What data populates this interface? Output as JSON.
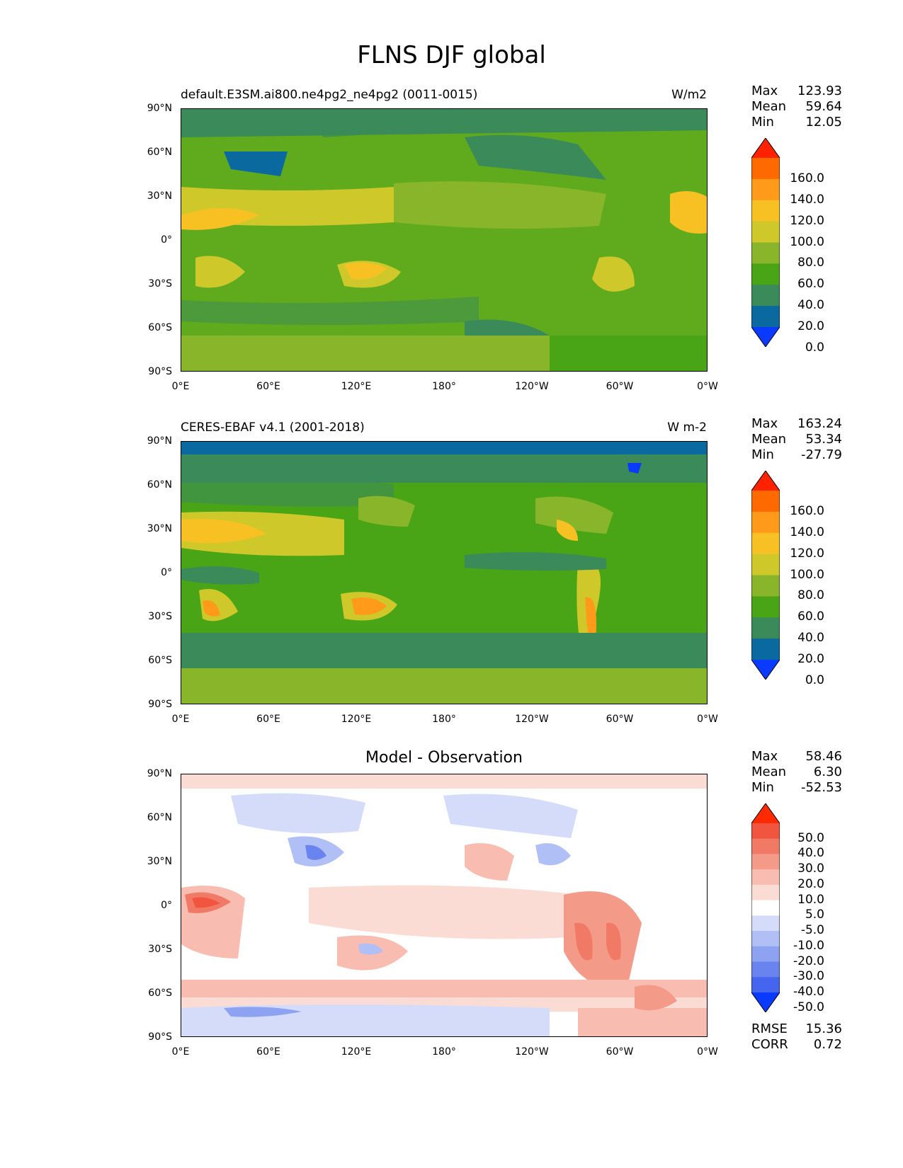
{
  "figure": {
    "title": "FLNS DJF global"
  },
  "axes": {
    "lat_labels": [
      "90°N",
      "60°N",
      "30°N",
      "0°",
      "30°S",
      "60°S",
      "90°S"
    ],
    "lon_labels": [
      "0°E",
      "60°E",
      "120°E",
      "180°",
      "120°W",
      "60°W",
      "0°W"
    ]
  },
  "panels": [
    {
      "title_left": "default.E3SM.ai800.ne4pg2_ne4pg2 (0011-0015)",
      "title_right": "W/m2",
      "title_center": "",
      "stats": {
        "max_label": "Max",
        "max": "123.93",
        "mean_label": "Mean",
        "mean": "59.64",
        "min_label": "Min",
        "min": "12.05"
      },
      "colorbar": {
        "labels": [
          "160.0",
          "140.0",
          "120.0",
          "100.0",
          "80.0",
          "60.0",
          "40.0",
          "20.0",
          "0.0"
        ],
        "colors": [
          "#ff2200",
          "#ff6a00",
          "#ff9a1a",
          "#f7c123",
          "#cfc82a",
          "#88b52a",
          "#4aa516",
          "#3a8a5a",
          "#0a6aa0",
          "#0a3aff"
        ]
      }
    },
    {
      "title_left": "CERES-EBAF v4.1 (2001-2018)",
      "title_right": "W m-2",
      "title_center": "",
      "stats": {
        "max_label": "Max",
        "max": "163.24",
        "mean_label": "Mean",
        "mean": "53.34",
        "min_label": "Min",
        "min": "-27.79"
      },
      "colorbar": {
        "labels": [
          "160.0",
          "140.0",
          "120.0",
          "100.0",
          "80.0",
          "60.0",
          "40.0",
          "20.0",
          "0.0"
        ],
        "colors": [
          "#ff2200",
          "#ff6a00",
          "#ff9a1a",
          "#f7c123",
          "#cfc82a",
          "#88b52a",
          "#4aa516",
          "#3a8a5a",
          "#0a6aa0",
          "#0a3aff"
        ]
      }
    },
    {
      "title_left": "",
      "title_right": "",
      "title_center": "Model - Observation",
      "stats": {
        "max_label": "Max",
        "max": "58.46",
        "mean_label": "Mean",
        "mean": "6.30",
        "min_label": "Min",
        "min": "-52.53"
      },
      "extra_stats": {
        "rmse_label": "RMSE",
        "rmse": "15.36",
        "corr_label": "CORR",
        "corr": "0.72"
      },
      "colorbar": {
        "labels": [
          "50.0",
          "40.0",
          "30.0",
          "20.0",
          "10.0",
          "5.0",
          "-5.0",
          "-10.0",
          "-20.0",
          "-30.0",
          "-40.0",
          "-50.0"
        ],
        "colors": [
          "#ff2a00",
          "#f2553f",
          "#f17a66",
          "#f49a89",
          "#f8bcb0",
          "#fbdcd5",
          "#ffffff",
          "#d4dcfa",
          "#b0bff6",
          "#8ea2f2",
          "#6a84ef",
          "#4665ee",
          "#0a3aff"
        ]
      }
    }
  ]
}
